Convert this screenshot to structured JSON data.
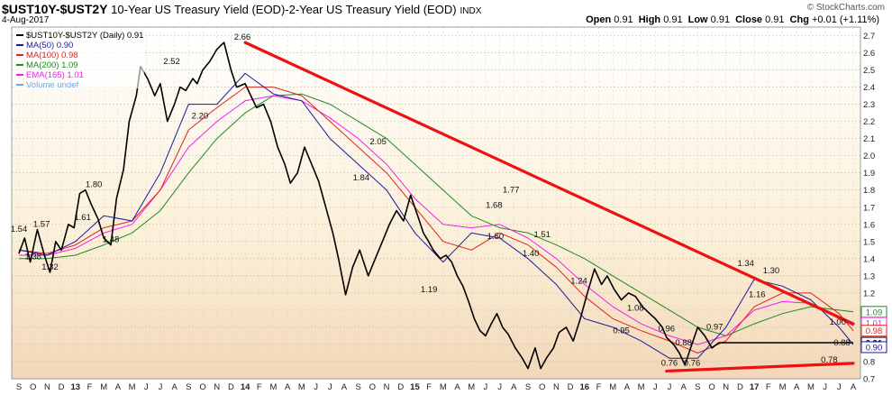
{
  "header": {
    "symbol": "$UST10Y-$UST2Y",
    "description": "10-Year US Treasury Yield (EOD)-2-Year US Treasury Yield (EOD)",
    "exchange": "INDX",
    "date": "4-Aug-2017",
    "credit": "© StockCharts.com",
    "ohlc": [
      {
        "label": "Open",
        "value": "0.91"
      },
      {
        "label": "High",
        "value": "0.91"
      },
      {
        "label": "Low",
        "value": "0.91"
      },
      {
        "label": "Close",
        "value": "0.91"
      },
      {
        "label": "Chg",
        "value": "+0.01 (+1.11%)"
      }
    ]
  },
  "legend": [
    {
      "text": "$UST10Y-$UST2Y (Daily) 0.91",
      "color": "#000000"
    },
    {
      "text": "MA(50) 0.90",
      "color": "#1a1a9e"
    },
    {
      "text": "MA(100) 0.98",
      "color": "#e02020"
    },
    {
      "text": "MA(200) 1.09",
      "color": "#1e8a1e"
    },
    {
      "text": "EMA(165) 1.01",
      "color": "#ee22ee"
    },
    {
      "text": "Volume undef",
      "color": "#6fa8dc"
    }
  ],
  "colors": {
    "price": "#000000",
    "ma50": "#1a1a9e",
    "ma100": "#e02020",
    "ma200": "#1e8a1e",
    "ema165": "#ee22ee",
    "trend": "#ee1111"
  },
  "chart_data": {
    "type": "line",
    "title": "$UST10Y-$UST2Y 10-Year US Treasury Yield (EOD)-2-Year US Treasury Yield (EOD)",
    "ylim": [
      0.7,
      2.75
    ],
    "y_ticks": [
      0.7,
      0.8,
      0.9,
      1.0,
      1.1,
      1.2,
      1.3,
      1.4,
      1.5,
      1.6,
      1.7,
      1.8,
      1.9,
      2.0,
      2.1,
      2.2,
      2.3,
      2.4,
      2.5,
      2.6,
      2.7
    ],
    "xlim_months": [
      0,
      59
    ],
    "x_ticks": [
      {
        "m": 0,
        "label": "S"
      },
      {
        "m": 1,
        "label": "O"
      },
      {
        "m": 2,
        "label": "N"
      },
      {
        "m": 3,
        "label": "D"
      },
      {
        "m": 4,
        "label": "13",
        "bold": true
      },
      {
        "m": 5,
        "label": "F"
      },
      {
        "m": 6,
        "label": "M"
      },
      {
        "m": 7,
        "label": "A"
      },
      {
        "m": 8,
        "label": "M"
      },
      {
        "m": 9,
        "label": "J"
      },
      {
        "m": 10,
        "label": "J"
      },
      {
        "m": 11,
        "label": "A"
      },
      {
        "m": 12,
        "label": "S"
      },
      {
        "m": 13,
        "label": "O"
      },
      {
        "m": 14,
        "label": "N"
      },
      {
        "m": 15,
        "label": "D"
      },
      {
        "m": 16,
        "label": "14",
        "bold": true
      },
      {
        "m": 17,
        "label": "F"
      },
      {
        "m": 18,
        "label": "M"
      },
      {
        "m": 19,
        "label": "A"
      },
      {
        "m": 20,
        "label": "M"
      },
      {
        "m": 21,
        "label": "J"
      },
      {
        "m": 22,
        "label": "J"
      },
      {
        "m": 23,
        "label": "A"
      },
      {
        "m": 24,
        "label": "S"
      },
      {
        "m": 25,
        "label": "O"
      },
      {
        "m": 26,
        "label": "N"
      },
      {
        "m": 27,
        "label": "D"
      },
      {
        "m": 28,
        "label": "15",
        "bold": true
      },
      {
        "m": 29,
        "label": "F"
      },
      {
        "m": 30,
        "label": "M"
      },
      {
        "m": 31,
        "label": "A"
      },
      {
        "m": 32,
        "label": "M"
      },
      {
        "m": 33,
        "label": "J"
      },
      {
        "m": 34,
        "label": "J"
      },
      {
        "m": 35,
        "label": "A"
      },
      {
        "m": 36,
        "label": "S"
      },
      {
        "m": 37,
        "label": "O"
      },
      {
        "m": 38,
        "label": "N"
      },
      {
        "m": 39,
        "label": "D"
      },
      {
        "m": 40,
        "label": "16",
        "bold": true
      },
      {
        "m": 41,
        "label": "F"
      },
      {
        "m": 42,
        "label": "M"
      },
      {
        "m": 43,
        "label": "A"
      },
      {
        "m": 44,
        "label": "M"
      },
      {
        "m": 45,
        "label": "J"
      },
      {
        "m": 46,
        "label": "J"
      },
      {
        "m": 47,
        "label": "A"
      },
      {
        "m": 48,
        "label": "S"
      },
      {
        "m": 49,
        "label": "O"
      },
      {
        "m": 50,
        "label": "N"
      },
      {
        "m": 51,
        "label": "D"
      },
      {
        "m": 52,
        "label": "17",
        "bold": true
      },
      {
        "m": 53,
        "label": "F"
      },
      {
        "m": 54,
        "label": "M"
      },
      {
        "m": 55,
        "label": "A"
      },
      {
        "m": 56,
        "label": "M"
      },
      {
        "m": 57,
        "label": "J"
      },
      {
        "m": 58,
        "label": "J"
      },
      {
        "m": 59,
        "label": "A"
      }
    ],
    "series": [
      {
        "name": "$UST10Y-$UST2Y",
        "key": "price",
        "x": [
          0,
          0.4,
          0.8,
          1.3,
          1.8,
          2.2,
          2.6,
          3.0,
          3.5,
          3.9,
          4.3,
          4.7,
          5.1,
          5.6,
          6.0,
          6.5,
          6.9,
          7.4,
          7.8,
          8.3,
          8.6,
          9.1,
          9.6,
          10.0,
          10.5,
          11.0,
          11.4,
          11.8,
          12.3,
          12.6,
          13.0,
          13.5,
          14.0,
          14.5,
          15.0,
          15.4,
          16.0,
          16.4,
          16.8,
          17.3,
          17.8,
          18.3,
          18.8,
          19.2,
          19.7,
          20.2,
          20.7,
          21.2,
          21.7,
          22.2,
          22.6,
          23.1,
          23.6,
          24.1,
          24.7,
          25.2,
          25.7,
          26.2,
          26.7,
          27.2,
          27.7,
          28.2,
          28.6,
          28.9,
          29.3,
          29.8,
          30.2,
          30.6,
          31.0,
          31.4,
          31.8,
          32.2,
          32.6,
          33.0,
          33.4,
          33.8,
          34.2,
          34.6,
          35.1,
          35.6,
          36.0,
          36.5,
          36.9,
          37.3,
          37.8,
          38.2,
          38.7,
          39.2,
          39.7,
          40.2,
          40.7,
          41.2,
          41.6,
          42.1,
          42.6,
          43.1,
          43.6,
          44.1,
          44.6,
          45.0,
          45.5,
          45.8,
          46.3,
          46.7,
          47.1,
          47.5,
          48.0,
          48.5,
          49.0,
          49.5,
          50.0,
          50.5,
          51.0,
          51.4,
          51.8,
          52.2,
          52.6,
          53.0,
          53.5,
          53.9,
          54.3,
          54.7,
          55.2,
          55.6,
          56.0,
          56.5,
          56.9,
          57.2,
          57.6,
          58.1,
          58.6,
          59.0
        ],
        "y": [
          1.43,
          1.52,
          1.38,
          1.57,
          1.42,
          1.32,
          1.5,
          1.45,
          1.6,
          1.58,
          1.78,
          1.8,
          1.72,
          1.63,
          1.52,
          1.48,
          1.75,
          1.92,
          2.2,
          2.35,
          2.52,
          2.45,
          2.35,
          2.42,
          2.2,
          2.3,
          2.4,
          2.38,
          2.45,
          2.42,
          2.5,
          2.55,
          2.62,
          2.66,
          2.5,
          2.4,
          2.42,
          2.35,
          2.28,
          2.3,
          2.2,
          2.05,
          1.95,
          1.84,
          1.9,
          2.05,
          1.95,
          1.85,
          1.7,
          1.55,
          1.4,
          1.19,
          1.35,
          1.45,
          1.3,
          1.4,
          1.5,
          1.6,
          1.68,
          1.62,
          1.77,
          1.65,
          1.55,
          1.51,
          1.45,
          1.4,
          1.42,
          1.38,
          1.3,
          1.24,
          1.15,
          1.05,
          0.98,
          0.95,
          1.02,
          1.08,
          1.0,
          0.96,
          0.88,
          0.82,
          0.76,
          0.88,
          0.76,
          0.82,
          0.88,
          0.97,
          1.0,
          0.92,
          1.05,
          1.2,
          1.34,
          1.25,
          1.3,
          1.22,
          1.16,
          1.2,
          1.18,
          1.12,
          1.08,
          1.05,
          1.0,
          0.94,
          0.9,
          0.85,
          0.78,
          0.88,
          1.0,
          0.95,
          0.88,
          0.91,
          0.91,
          0.91,
          0.91,
          0.91,
          0.91,
          0.91,
          0.91,
          0.91,
          0.91,
          0.91,
          0.91,
          0.91,
          0.91,
          0.91,
          0.91,
          0.91,
          0.91,
          0.91,
          0.91,
          0.91,
          0.91,
          0.91
        ]
      },
      {
        "name": "MA(50)",
        "key": "ma50",
        "x": [
          0,
          2,
          4,
          6,
          8,
          10,
          12,
          14,
          16,
          18,
          20,
          22,
          24,
          26,
          28,
          30,
          32,
          34,
          36,
          38,
          40,
          42,
          44,
          46,
          48,
          50,
          52,
          54,
          56,
          58,
          59
        ],
        "y": [
          1.45,
          1.42,
          1.5,
          1.65,
          1.62,
          1.9,
          2.3,
          2.3,
          2.48,
          2.36,
          2.32,
          2.1,
          1.95,
          1.8,
          1.55,
          1.38,
          1.55,
          1.52,
          1.4,
          1.25,
          1.05,
          1.0,
          0.92,
          0.82,
          0.82,
          1.0,
          1.28,
          1.24,
          1.16,
          1.0,
          0.9
        ]
      },
      {
        "name": "MA(100)",
        "key": "ma100",
        "x": [
          0,
          2,
          4,
          6,
          8,
          10,
          12,
          14,
          16,
          18,
          20,
          22,
          24,
          26,
          28,
          30,
          32,
          34,
          36,
          38,
          40,
          42,
          44,
          46,
          48,
          50,
          52,
          54,
          56,
          58,
          59
        ],
        "y": [
          1.45,
          1.43,
          1.48,
          1.58,
          1.62,
          1.8,
          2.15,
          2.28,
          2.4,
          2.4,
          2.35,
          2.2,
          2.05,
          1.9,
          1.7,
          1.5,
          1.45,
          1.55,
          1.48,
          1.35,
          1.18,
          1.05,
          0.98,
          0.92,
          0.85,
          0.92,
          1.12,
          1.2,
          1.2,
          1.08,
          0.98
        ]
      },
      {
        "name": "MA(200)",
        "key": "ma200",
        "x": [
          0,
          2,
          4,
          6,
          8,
          10,
          12,
          14,
          16,
          18,
          20,
          22,
          24,
          26,
          28,
          30,
          32,
          34,
          36,
          38,
          40,
          42,
          44,
          46,
          48,
          50,
          52,
          54,
          56,
          58,
          59
        ],
        "y": [
          1.4,
          1.4,
          1.42,
          1.48,
          1.55,
          1.68,
          1.9,
          2.1,
          2.25,
          2.35,
          2.36,
          2.3,
          2.2,
          2.1,
          1.95,
          1.8,
          1.65,
          1.58,
          1.55,
          1.48,
          1.4,
          1.3,
          1.2,
          1.1,
          1.0,
          0.95,
          1.02,
          1.08,
          1.12,
          1.1,
          1.09
        ]
      },
      {
        "name": "EMA(165)",
        "key": "ema165",
        "x": [
          0,
          2,
          4,
          6,
          8,
          10,
          12,
          14,
          16,
          18,
          20,
          22,
          24,
          26,
          28,
          30,
          32,
          34,
          36,
          38,
          40,
          42,
          44,
          46,
          48,
          50,
          52,
          54,
          56,
          58,
          59
        ],
        "y": [
          1.42,
          1.42,
          1.46,
          1.55,
          1.6,
          1.8,
          2.05,
          2.2,
          2.32,
          2.35,
          2.32,
          2.22,
          2.1,
          1.95,
          1.75,
          1.6,
          1.58,
          1.6,
          1.52,
          1.4,
          1.25,
          1.12,
          1.02,
          0.95,
          0.9,
          0.95,
          1.1,
          1.15,
          1.14,
          1.05,
          1.01
        ]
      }
    ],
    "trendlines": [
      {
        "x": [
          16.0,
          59.0
        ],
        "y": [
          2.66,
          1.02
        ]
      },
      {
        "x": [
          45.8,
          59.0
        ],
        "y": [
          0.745,
          0.79
        ]
      }
    ],
    "annotations": [
      {
        "x": 0.0,
        "y": 1.54,
        "text": "1.54"
      },
      {
        "x": 1.6,
        "y": 1.57,
        "text": "1.57"
      },
      {
        "x": 1.0,
        "y": 1.38,
        "text": "1.38"
      },
      {
        "x": 2.2,
        "y": 1.32,
        "text": "1.32"
      },
      {
        "x": 4.5,
        "y": 1.61,
        "text": "1.61"
      },
      {
        "x": 5.3,
        "y": 1.8,
        "text": "1.80"
      },
      {
        "x": 6.5,
        "y": 1.48,
        "text": "1.48"
      },
      {
        "x": 10.8,
        "y": 2.52,
        "text": "2.52"
      },
      {
        "x": 12.8,
        "y": 2.2,
        "text": "2.20"
      },
      {
        "x": 15.8,
        "y": 2.66,
        "text": "2.66"
      },
      {
        "x": 25.4,
        "y": 2.05,
        "text": "2.05"
      },
      {
        "x": 24.2,
        "y": 1.84,
        "text": "1.84"
      },
      {
        "x": 29.0,
        "y": 1.19,
        "text": "1.19"
      },
      {
        "x": 33.6,
        "y": 1.68,
        "text": "1.68"
      },
      {
        "x": 33.7,
        "y": 1.5,
        "text": "1.50"
      },
      {
        "x": 34.8,
        "y": 1.77,
        "text": "1.77"
      },
      {
        "x": 37.0,
        "y": 1.51,
        "text": "1.51"
      },
      {
        "x": 36.2,
        "y": 1.4,
        "text": "1.40"
      },
      {
        "x": 39.6,
        "y": 1.24,
        "text": "1.24"
      },
      {
        "x": 43.6,
        "y": 1.08,
        "text": "1.08"
      },
      {
        "x": 42.6,
        "y": 0.95,
        "text": "0.95"
      },
      {
        "x": 45.8,
        "y": 0.96,
        "text": "0.96"
      },
      {
        "x": 47.0,
        "y": 0.88,
        "text": "0.88"
      },
      {
        "x": 46.0,
        "y": 0.76,
        "text": "0.76"
      },
      {
        "x": 47.6,
        "y": 0.76,
        "text": "0.76"
      },
      {
        "x": 49.2,
        "y": 0.97,
        "text": "0.97"
      },
      {
        "x": 51.4,
        "y": 1.34,
        "text": "1.34"
      },
      {
        "x": 53.2,
        "y": 1.3,
        "text": "1.30"
      },
      {
        "x": 52.2,
        "y": 1.16,
        "text": "1.16"
      },
      {
        "x": 57.9,
        "y": 1.0,
        "text": "1.00"
      },
      {
        "x": 58.2,
        "y": 0.88,
        "text": "0.88"
      },
      {
        "x": 57.3,
        "y": 0.78,
        "text": "0.78"
      }
    ],
    "right_tags": [
      {
        "value": 1.09,
        "text": "1.09",
        "color": "#1e8a1e",
        "bold": false
      },
      {
        "value": 1.01,
        "text": "1.01",
        "color": "#ee22ee",
        "bold": false
      },
      {
        "value": 0.98,
        "text": "0.98",
        "color": "#e02020",
        "bold": false
      },
      {
        "value": 0.91,
        "text": "0.91",
        "color": "#000000",
        "bold": true
      },
      {
        "value": 0.9,
        "text": "0.90",
        "color": "#1a1a9e",
        "bold": false
      }
    ]
  }
}
